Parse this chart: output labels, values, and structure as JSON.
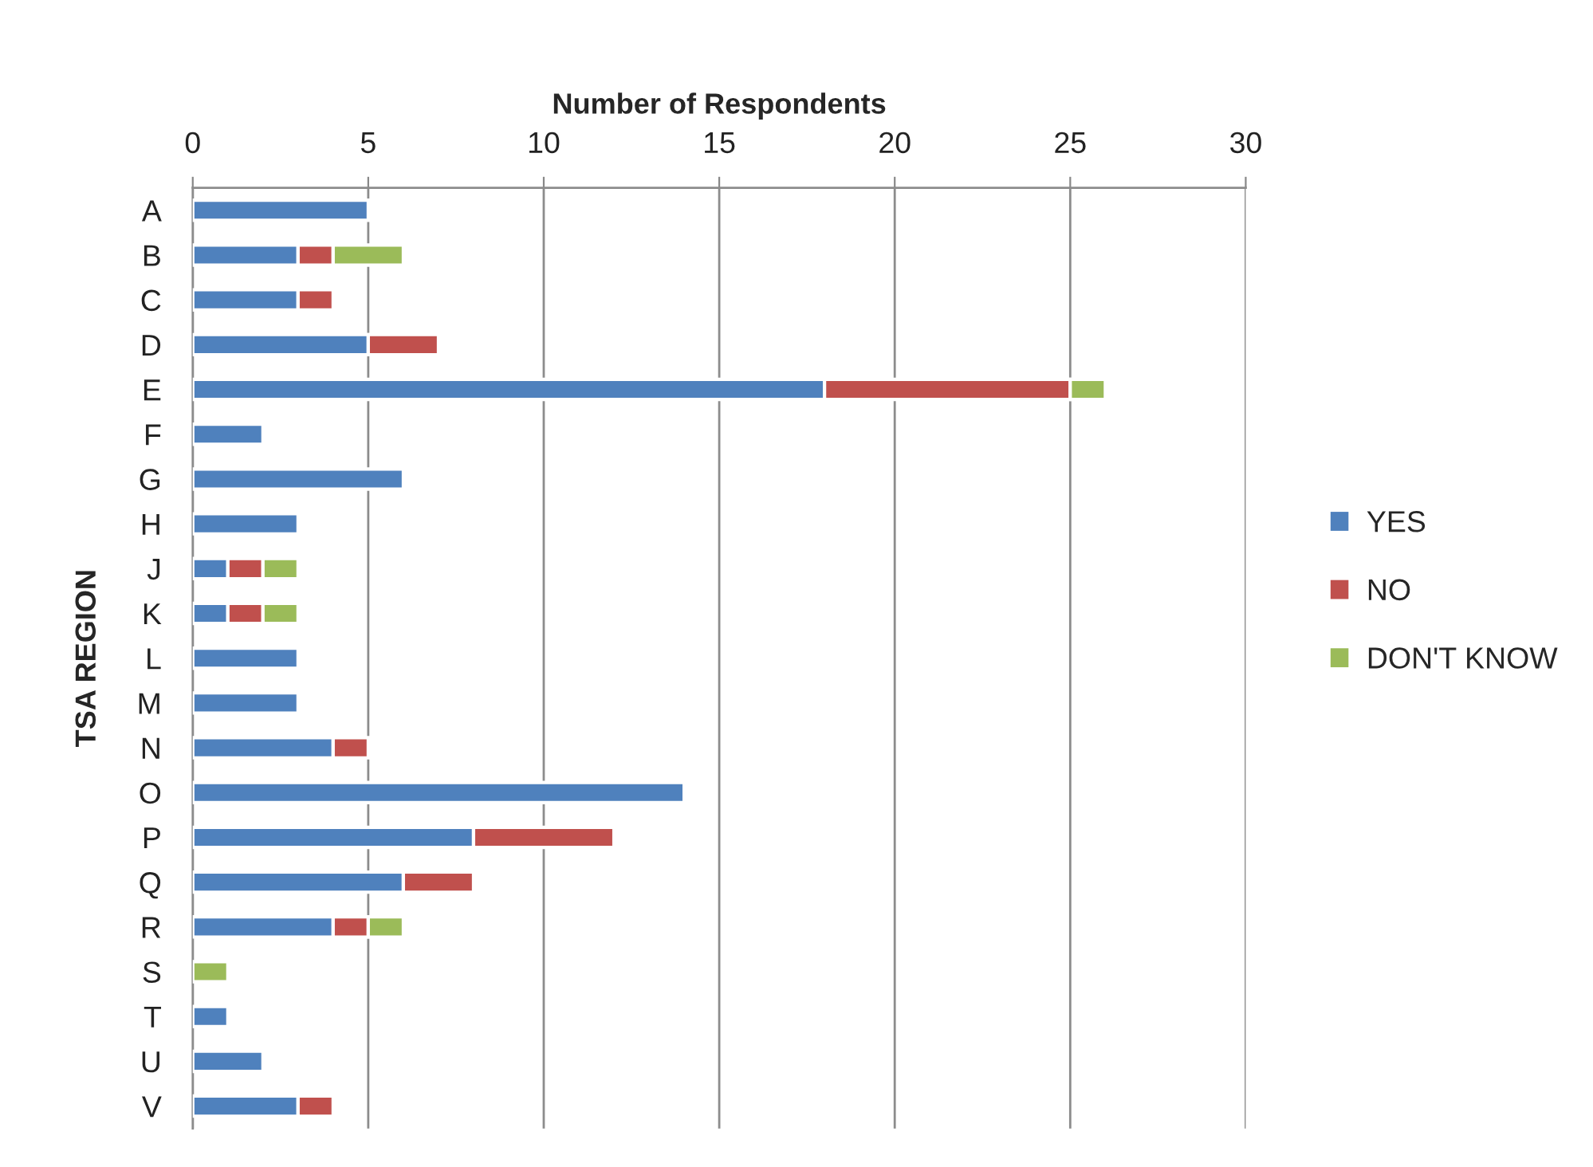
{
  "chart_data": {
    "type": "bar",
    "orientation": "horizontal",
    "stacked": true,
    "xlabel": "Number of Respondents",
    "ylabel": "TSA REGION",
    "categories": [
      "A",
      "B",
      "C",
      "D",
      "E",
      "F",
      "G",
      "H",
      "J",
      "K",
      "L",
      "M",
      "N",
      "O",
      "P",
      "Q",
      "R",
      "S",
      "T",
      "U",
      "V"
    ],
    "series": [
      {
        "name": "YES",
        "color": "#4f81bd",
        "values": [
          5,
          3,
          3,
          5,
          18,
          2,
          6,
          3,
          1,
          1,
          3,
          3,
          4,
          14,
          8,
          6,
          4,
          null,
          1,
          2,
          3
        ]
      },
      {
        "name": "NO",
        "color": "#c0504d",
        "values": [
          null,
          1,
          1,
          2,
          7,
          null,
          null,
          null,
          1,
          1,
          null,
          null,
          1,
          null,
          4,
          2,
          1,
          null,
          null,
          null,
          1
        ]
      },
      {
        "name": "DON'T KNOW",
        "color": "#9bbb59",
        "values": [
          null,
          2,
          null,
          null,
          1,
          null,
          null,
          null,
          1,
          1,
          null,
          null,
          null,
          null,
          null,
          null,
          1,
          1,
          null,
          null,
          null
        ]
      }
    ],
    "xlim": [
      0,
      30
    ],
    "xticks": [
      0,
      5,
      10,
      15,
      20,
      25,
      30
    ],
    "grid": "x",
    "legend": "right"
  }
}
